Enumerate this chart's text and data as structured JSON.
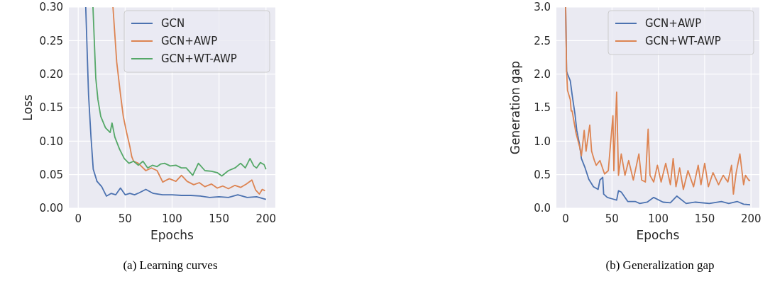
{
  "chart_data": [
    {
      "type": "line",
      "xlabel": "Epochs",
      "ylabel": "Loss",
      "xlim": [
        -10,
        210
      ],
      "xticks": [
        0,
        50,
        100,
        150,
        200
      ],
      "ylim": [
        0,
        0.3
      ],
      "yticks": [
        {
          "value": 0,
          "label": "0.00"
        },
        {
          "value": 0.05,
          "label": "0.05"
        },
        {
          "value": 0.1,
          "label": "0.10"
        },
        {
          "value": 0.15,
          "label": "0.15"
        },
        {
          "value": 0.2,
          "label": "0.20"
        },
        {
          "value": 0.25,
          "label": "0.25"
        },
        {
          "value": 0.3,
          "label": "0.30"
        }
      ],
      "grid": true,
      "legend": "top right",
      "annotations": [
        "(a) Learning curves"
      ],
      "series": [
        {
          "name": "GCN",
          "color": "#4c72b0",
          "x": [
            8,
            11,
            13.6,
            16,
            20,
            25,
            30,
            35,
            40,
            45,
            50,
            55,
            60,
            65,
            72,
            80,
            90,
            100,
            110,
            120,
            130,
            140,
            150,
            160,
            170,
            180,
            190,
            200
          ],
          "values": [
            0.3,
            0.169,
            0.106,
            0.058,
            0.04,
            0.032,
            0.018,
            0.022,
            0.02,
            0.03,
            0.02,
            0.022,
            0.02,
            0.023,
            0.028,
            0.022,
            0.02,
            0.02,
            0.019,
            0.019,
            0.018,
            0.016,
            0.017,
            0.016,
            0.02,
            0.016,
            0.017,
            0.013
          ]
        },
        {
          "name": "GCN+AWP",
          "color": "#dd8452",
          "x": [
            37,
            41,
            45,
            48,
            51.5,
            55,
            57,
            59,
            64,
            72,
            78,
            84,
            90,
            97,
            104,
            110,
            116,
            123,
            129,
            135,
            142,
            148,
            154,
            160,
            167,
            173,
            179,
            185,
            189,
            193,
            196,
            199
          ],
          "values": [
            0.3,
            0.218,
            0.17,
            0.137,
            0.113,
            0.092,
            0.077,
            0.07,
            0.067,
            0.056,
            0.06,
            0.056,
            0.039,
            0.044,
            0.04,
            0.049,
            0.04,
            0.035,
            0.038,
            0.032,
            0.036,
            0.03,
            0.033,
            0.029,
            0.034,
            0.031,
            0.036,
            0.042,
            0.027,
            0.021,
            0.028,
            0.026
          ]
        },
        {
          "name": "GCN+WT-AWP",
          "color": "#55a868",
          "x": [
            15.7,
            18.7,
            21,
            24,
            29,
            34,
            36,
            39,
            44,
            49,
            54,
            59,
            64,
            69,
            74,
            79,
            84,
            88,
            92,
            98,
            104,
            110,
            115,
            122,
            128,
            135,
            142,
            148,
            153,
            160,
            167,
            173,
            178,
            183,
            187,
            190,
            194,
            198,
            200
          ],
          "values": [
            0.3,
            0.194,
            0.162,
            0.137,
            0.12,
            0.113,
            0.127,
            0.106,
            0.088,
            0.074,
            0.067,
            0.07,
            0.064,
            0.07,
            0.06,
            0.064,
            0.062,
            0.066,
            0.067,
            0.063,
            0.064,
            0.06,
            0.06,
            0.049,
            0.067,
            0.056,
            0.055,
            0.053,
            0.048,
            0.056,
            0.06,
            0.067,
            0.06,
            0.074,
            0.063,
            0.06,
            0.068,
            0.065,
            0.058
          ]
        }
      ]
    },
    {
      "type": "line",
      "xlabel": "Epochs",
      "ylabel": "Generation gap",
      "xlim": [
        -10,
        209
      ],
      "xticks": [
        0,
        50,
        100,
        150,
        200
      ],
      "ylim": [
        0,
        3
      ],
      "yticks": [
        {
          "value": 0,
          "label": "0.0"
        },
        {
          "value": 0.5,
          "label": "0.5"
        },
        {
          "value": 1,
          "label": "1.0"
        },
        {
          "value": 1.5,
          "label": "1.5"
        },
        {
          "value": 2,
          "label": "2.0"
        },
        {
          "value": 2.5,
          "label": "2.5"
        },
        {
          "value": 3,
          "label": "3.0"
        }
      ],
      "grid": true,
      "legend": "top right",
      "annotations": [
        "(b) Generalization gap"
      ],
      "series": [
        {
          "name": "GCN+AWP",
          "color": "#4c72b0",
          "x": [
            0,
            1,
            2,
            5,
            7,
            10,
            12,
            15,
            17,
            21,
            25,
            30,
            35,
            37,
            40,
            41,
            45,
            50,
            55,
            57,
            60,
            67,
            75,
            80,
            88,
            95,
            105,
            113,
            120,
            130,
            140,
            155,
            168,
            176,
            185,
            192,
            199
          ],
          "values": [
            3.0,
            2.04,
            2.0,
            1.9,
            1.69,
            1.41,
            1.16,
            0.95,
            0.74,
            0.6,
            0.43,
            0.32,
            0.28,
            0.42,
            0.46,
            0.21,
            0.16,
            0.14,
            0.12,
            0.26,
            0.24,
            0.1,
            0.1,
            0.07,
            0.09,
            0.16,
            0.09,
            0.08,
            0.18,
            0.07,
            0.09,
            0.07,
            0.1,
            0.07,
            0.1,
            0.06,
            0.05
          ]
        },
        {
          "name": "GCN+WT-AWP",
          "color": "#dd8452",
          "x": [
            0,
            1,
            2,
            5,
            6,
            7,
            11,
            15,
            17,
            20,
            22,
            26,
            28,
            31,
            33,
            37,
            42,
            46,
            51,
            52,
            55,
            57,
            60,
            64,
            68,
            73,
            79,
            82,
            86,
            89,
            91,
            95,
            99,
            103,
            108,
            113,
            116,
            119,
            123,
            127,
            132,
            138,
            143,
            146,
            150,
            154,
            159,
            165,
            170,
            175,
            179,
            181,
            184,
            188,
            192,
            194,
            198,
            199
          ],
          "values": [
            3.0,
            2.05,
            1.76,
            1.62,
            1.45,
            1.45,
            1.13,
            0.92,
            0.78,
            1.16,
            0.85,
            1.24,
            0.85,
            0.71,
            0.64,
            0.71,
            0.51,
            0.56,
            1.38,
            0.56,
            1.73,
            0.49,
            0.81,
            0.49,
            0.71,
            0.42,
            0.81,
            0.42,
            0.39,
            1.18,
            0.49,
            0.39,
            0.64,
            0.39,
            0.67,
            0.35,
            0.74,
            0.32,
            0.6,
            0.28,
            0.56,
            0.32,
            0.64,
            0.35,
            0.67,
            0.32,
            0.53,
            0.35,
            0.49,
            0.39,
            0.64,
            0.21,
            0.53,
            0.81,
            0.35,
            0.49,
            0.41,
            0.42
          ]
        }
      ]
    }
  ]
}
